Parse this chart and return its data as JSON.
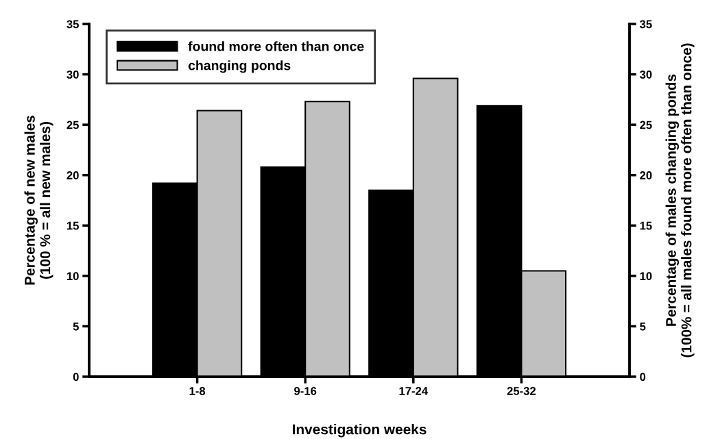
{
  "chart_data": {
    "type": "bar",
    "xlabel": "Investigation weeks",
    "ylabel": "Percentage of new males\n(100 % = all new males)",
    "y2label": "Percentage of males changing ponds\n(100% = all males found more often than once)",
    "categories": [
      "1-8",
      "9-16",
      "17-24",
      "25-32"
    ],
    "series": [
      {
        "name": "found more often than once",
        "color": "#000000",
        "values": [
          19.2,
          20.8,
          18.5,
          26.9
        ]
      },
      {
        "name": "changing ponds",
        "color": "#c0c0c0",
        "values": [
          26.4,
          27.3,
          29.6,
          10.5
        ],
        "axis": "y2"
      }
    ],
    "ylim": [
      0,
      35
    ],
    "yticks": [
      0,
      5,
      10,
      15,
      20,
      25,
      30,
      35
    ],
    "y2lim": [
      0,
      35
    ],
    "y2ticks": [
      0,
      5,
      10,
      15,
      20,
      25,
      30,
      35
    ],
    "legend": "top left",
    "grid": false
  }
}
